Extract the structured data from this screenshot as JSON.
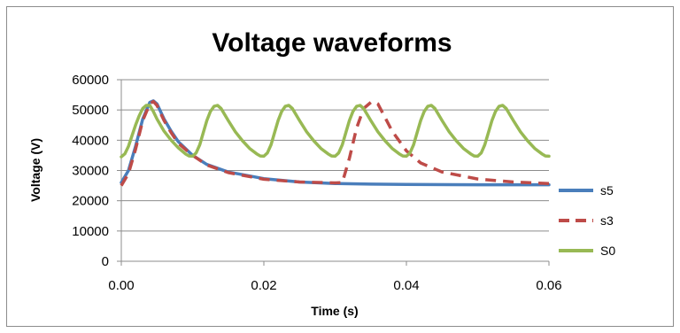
{
  "chart_data": {
    "type": "line",
    "title": "Voltage waveforms",
    "xlabel": "Time (s)",
    "ylabel": "Voltage (V)",
    "xlim": [
      0,
      0.06
    ],
    "ylim": [
      0,
      60000
    ],
    "x_ticks": [
      "0.00",
      "0.02",
      "0.04",
      "0.06"
    ],
    "x_tick_values": [
      0,
      0.02,
      0.04,
      0.06
    ],
    "y_ticks": [
      "0",
      "10000",
      "20000",
      "30000",
      "40000",
      "50000",
      "60000"
    ],
    "y_tick_values": [
      0,
      10000,
      20000,
      30000,
      40000,
      50000,
      60000
    ],
    "grid": "horizontal",
    "legend_position": "right",
    "series": [
      {
        "name": "s5",
        "color": "#4a7ebb",
        "dash": "solid",
        "x": [
          0,
          0.001,
          0.002,
          0.003,
          0.004,
          0.0045,
          0.005,
          0.006,
          0.007,
          0.008,
          0.01,
          0.012,
          0.015,
          0.02,
          0.025,
          0.03,
          0.035,
          0.04,
          0.05,
          0.06
        ],
        "y": [
          26000,
          30000,
          38000,
          47000,
          52500,
          53000,
          52000,
          47000,
          43000,
          39500,
          35000,
          32000,
          29500,
          27300,
          26200,
          25700,
          25500,
          25400,
          25300,
          25300
        ]
      },
      {
        "name": "s3",
        "color": "#be4b48",
        "dash": "dashed",
        "x": [
          0,
          0.001,
          0.002,
          0.003,
          0.004,
          0.0045,
          0.005,
          0.006,
          0.007,
          0.008,
          0.01,
          0.012,
          0.015,
          0.02,
          0.025,
          0.03,
          0.031,
          0.032,
          0.033,
          0.034,
          0.035,
          0.0355,
          0.036,
          0.037,
          0.038,
          0.04,
          0.042,
          0.045,
          0.05,
          0.055,
          0.06
        ],
        "y": [
          25000,
          29000,
          37000,
          46500,
          52000,
          52800,
          51500,
          46500,
          42500,
          39000,
          35000,
          31800,
          29300,
          27100,
          26200,
          25900,
          26000,
          34000,
          44000,
          50500,
          52500,
          52700,
          52000,
          47500,
          43000,
          36500,
          32500,
          29500,
          27200,
          26200,
          25700
        ]
      },
      {
        "name": "S0",
        "color": "#98b954",
        "dash": "solid",
        "x": [
          0,
          0.0005,
          0.001,
          0.0015,
          0.002,
          0.0025,
          0.003,
          0.0035,
          0.004,
          0.0045,
          0.005,
          0.006,
          0.007,
          0.008,
          0.009,
          0.0095,
          0.01,
          0.0105,
          0.011,
          0.0115,
          0.012,
          0.0125,
          0.013,
          0.0135,
          0.014,
          0.0145,
          0.015,
          0.016,
          0.017,
          0.018,
          0.019,
          0.0195,
          0.02,
          0.0205,
          0.021,
          0.0215,
          0.022,
          0.0225,
          0.023,
          0.0235,
          0.024,
          0.0245,
          0.025,
          0.026,
          0.027,
          0.028,
          0.029,
          0.0295,
          0.03,
          0.0305,
          0.031,
          0.0315,
          0.032,
          0.0325,
          0.033,
          0.0335,
          0.034,
          0.0345,
          0.035,
          0.036,
          0.037,
          0.038,
          0.039,
          0.0395,
          0.04,
          0.0405,
          0.041,
          0.0415,
          0.042,
          0.0425,
          0.043,
          0.0435,
          0.044,
          0.0445,
          0.045,
          0.046,
          0.047,
          0.048,
          0.049,
          0.0495,
          0.05,
          0.0505,
          0.051,
          0.0515,
          0.052,
          0.0525,
          0.053,
          0.0535,
          0.054,
          0.0545,
          0.055,
          0.056,
          0.057,
          0.058,
          0.059,
          0.0595,
          0.06
        ],
        "y": [
          34500,
          35500,
          38000,
          41500,
          45000,
          48000,
          50500,
          51500,
          51500,
          49500,
          47000,
          43000,
          40000,
          37500,
          35500,
          34800,
          34700,
          35800,
          38500,
          42500,
          46500,
          49500,
          51200,
          51500,
          50500,
          48500,
          46500,
          42800,
          39800,
          37300,
          35500,
          34800,
          34700,
          35800,
          38500,
          42500,
          46500,
          49500,
          51200,
          51500,
          50500,
          48500,
          46500,
          42800,
          39800,
          37300,
          35500,
          34800,
          34700,
          35800,
          38500,
          42500,
          46500,
          49500,
          51200,
          51500,
          50500,
          48500,
          46500,
          42800,
          39800,
          37300,
          35500,
          34800,
          34700,
          35800,
          38500,
          42500,
          46500,
          49500,
          51200,
          51500,
          50500,
          48500,
          46500,
          42800,
          39800,
          37300,
          35500,
          34800,
          34700,
          35800,
          38500,
          42500,
          46500,
          49500,
          51200,
          51500,
          50500,
          48500,
          46500,
          42800,
          39800,
          37300,
          35500,
          34800,
          34700
        ]
      }
    ]
  }
}
